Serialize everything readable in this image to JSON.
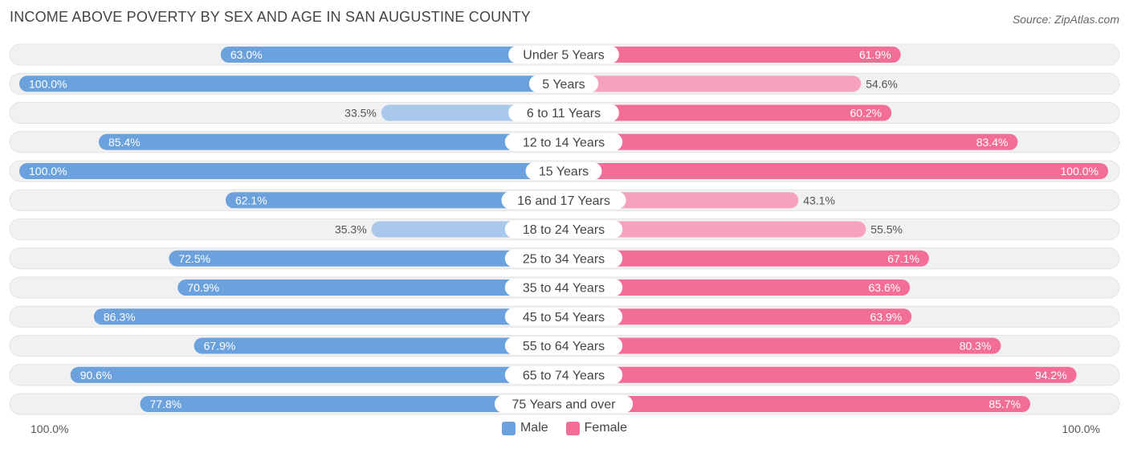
{
  "title": "INCOME ABOVE POVERTY BY SEX AND AGE IN SAN AUGUSTINE COUNTY",
  "source": "Source: ZipAtlas.com",
  "axis": {
    "left_label": "100.0%",
    "right_label": "100.0%"
  },
  "legend": [
    {
      "label": "Male",
      "color": "#6ba1dd"
    },
    {
      "label": "Female",
      "color": "#f26e97"
    }
  ],
  "colors": {
    "male_strong": "#6ba1dd",
    "male_light": "#a9c8ec",
    "female_strong": "#f26e97",
    "female_light": "#f6a2bd",
    "track": "#f1f1f1",
    "track_border": "#e2e2e2"
  },
  "chart_data": {
    "type": "bar",
    "orientation": "horizontal-diverging",
    "title": "INCOME ABOVE POVERTY BY SEX AND AGE IN SAN AUGUSTINE COUNTY",
    "xlim": [
      0,
      100
    ],
    "categories": [
      "Under 5 Years",
      "5 Years",
      "6 to 11 Years",
      "12 to 14 Years",
      "15 Years",
      "16 and 17 Years",
      "18 to 24 Years",
      "25 to 34 Years",
      "35 to 44 Years",
      "45 to 54 Years",
      "55 to 64 Years",
      "65 to 74 Years",
      "75 Years and over"
    ],
    "series": [
      {
        "name": "Male",
        "values": [
          63.0,
          100.0,
          33.5,
          85.4,
          100.0,
          62.1,
          35.3,
          72.5,
          70.9,
          86.3,
          67.9,
          90.6,
          77.8
        ],
        "labels": [
          "63.0%",
          "100.0%",
          "33.5%",
          "85.4%",
          "100.0%",
          "62.1%",
          "35.3%",
          "72.5%",
          "70.9%",
          "86.3%",
          "67.9%",
          "90.6%",
          "77.8%"
        ]
      },
      {
        "name": "Female",
        "values": [
          61.9,
          54.6,
          60.2,
          83.4,
          100.0,
          43.1,
          55.5,
          67.1,
          63.6,
          63.9,
          80.3,
          94.2,
          85.7
        ],
        "labels": [
          "61.9%",
          "54.6%",
          "60.2%",
          "83.4%",
          "100.0%",
          "43.1%",
          "55.5%",
          "67.1%",
          "63.6%",
          "63.9%",
          "80.3%",
          "94.2%",
          "85.7%"
        ]
      }
    ]
  }
}
